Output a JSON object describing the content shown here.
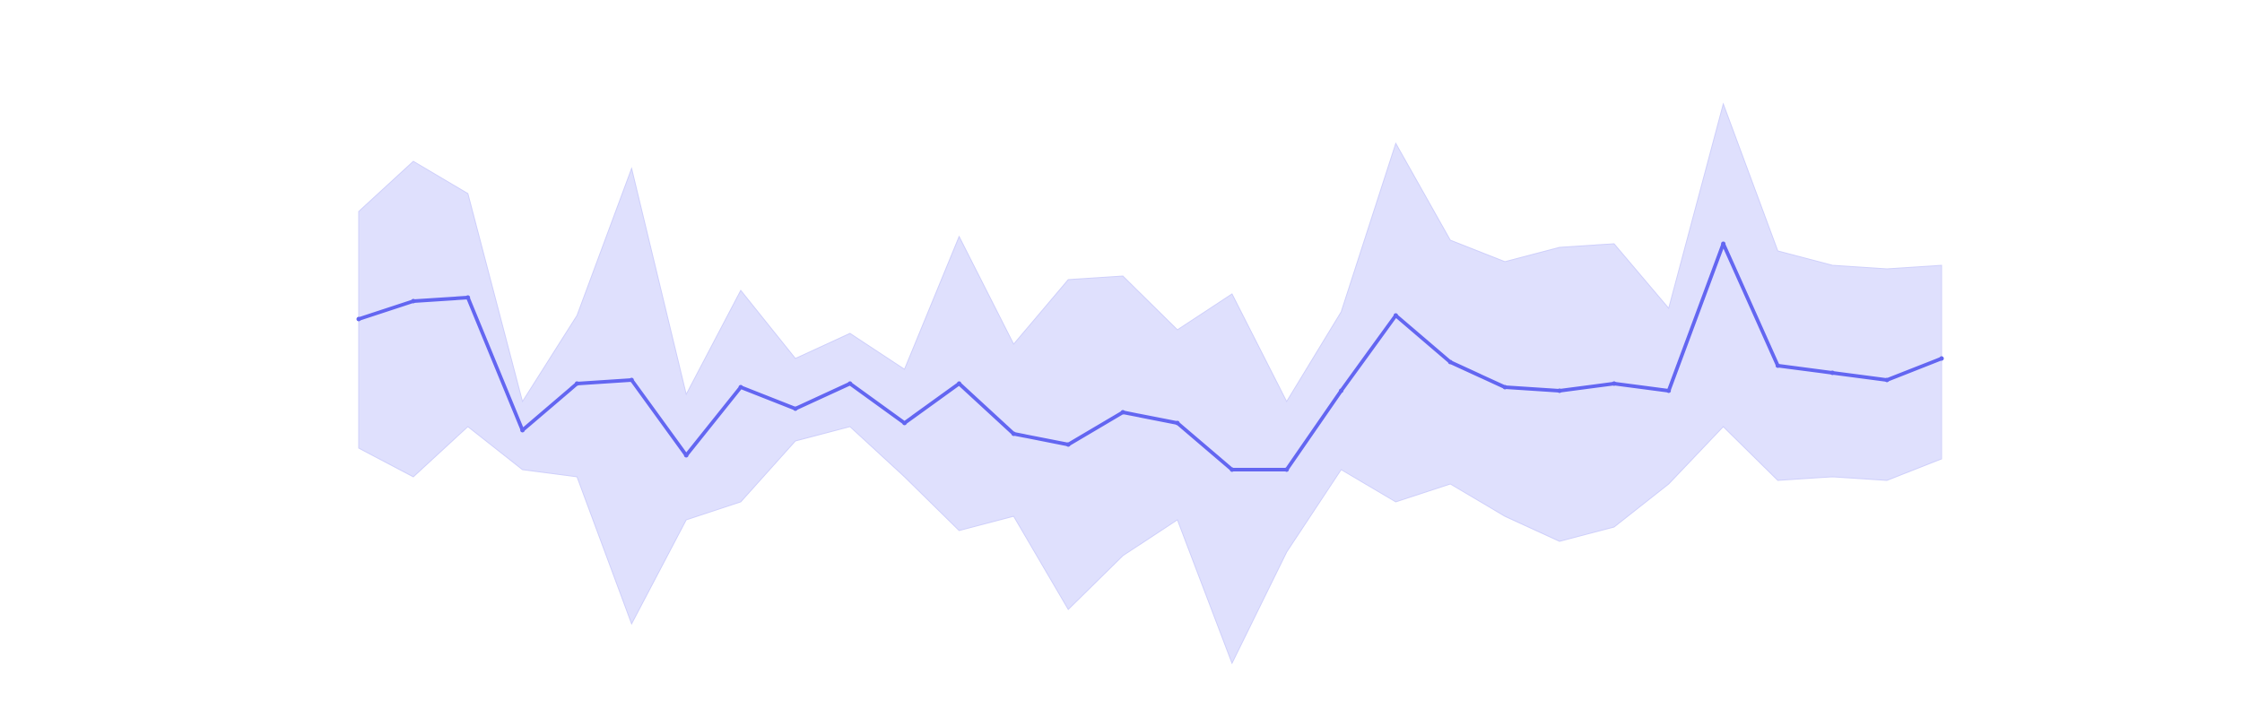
{
  "chart_data": {
    "type": "area",
    "title": "",
    "xlabel": "",
    "ylabel": "",
    "grid": false,
    "legend": "none",
    "x": [
      0,
      1,
      2,
      3,
      4,
      5,
      6,
      7,
      8,
      9,
      10,
      11,
      12,
      13,
      14,
      15,
      16,
      17,
      18,
      19,
      20,
      21,
      22,
      23,
      24,
      25,
      26,
      27,
      28,
      29
    ],
    "xlim": [
      0,
      29
    ],
    "ylim": [
      0,
      100
    ],
    "series": [
      {
        "color": "#6366f1",
        "values": [
          55.5,
          58.0,
          58.5,
          40.0,
          46.5,
          47.0,
          36.5,
          46.0,
          43.0,
          46.5,
          41.0,
          46.5,
          39.5,
          38.0,
          42.5,
          41.0,
          34.5,
          34.5,
          45.5,
          56.0,
          49.5,
          46.0,
          45.5,
          46.5,
          45.5,
          66.0,
          49.0,
          48.0,
          47.0,
          50.0
        ]
      }
    ],
    "band": {
      "color": "#dfe0fd",
      "upper": [
        70.5,
        77.5,
        73.0,
        44.0,
        56.0,
        76.5,
        45.0,
        59.5,
        50.0,
        53.5,
        48.5,
        67.0,
        52.0,
        61.0,
        61.5,
        54.0,
        59.0,
        44.0,
        56.5,
        80.0,
        66.5,
        63.5,
        65.5,
        66.0,
        57.0,
        85.5,
        65.0,
        63.0,
        62.5,
        63.0
      ],
      "lower": [
        37.5,
        33.5,
        40.5,
        34.5,
        33.5,
        13.0,
        27.5,
        30.0,
        38.5,
        40.5,
        33.5,
        26.0,
        28.0,
        15.0,
        22.5,
        27.5,
        7.5,
        23.0,
        34.5,
        30.0,
        32.5,
        28.0,
        24.5,
        26.5,
        32.5,
        40.5,
        33.0,
        33.5,
        33.0,
        36.0
      ]
    }
  }
}
